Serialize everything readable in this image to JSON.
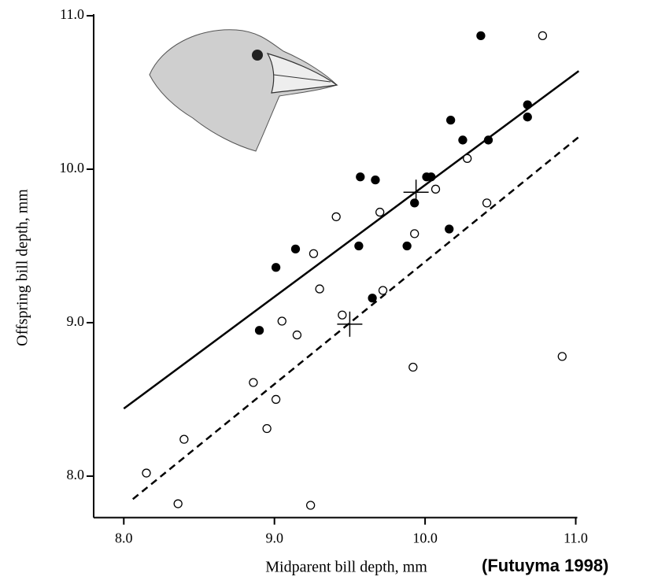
{
  "chart_data": {
    "type": "scatter",
    "x_label": "Midparent bill depth, mm",
    "y_label": "Offspring bill depth, mm",
    "annotation": "(Futuyma 1998)",
    "xlim": [
      7.8,
      11.0
    ],
    "ylim": [
      7.73,
      11.0
    ],
    "xticks": [
      {
        "value": 8,
        "label": "8.0"
      },
      {
        "value": 9,
        "label": "9.0"
      },
      {
        "value": 10,
        "label": "10.0"
      },
      {
        "value": 11,
        "label": "11.0"
      }
    ],
    "yticks": [
      {
        "value": 8,
        "label": "8.0"
      },
      {
        "value": 9,
        "label": "9.0"
      },
      {
        "value": 10,
        "label": "10.0"
      },
      {
        "value": 11,
        "label": "11.0"
      }
    ],
    "color": "#000000",
    "series": [
      {
        "marker": "filled",
        "x": [
          8.9,
          9.01,
          9.14,
          9.56,
          9.57,
          9.67,
          9.65,
          9.88,
          9.93,
          10.01,
          10.04,
          10.16,
          10.17,
          10.25,
          10.37,
          10.42,
          10.68,
          10.68
        ],
        "values": [
          8.95,
          9.36,
          9.48,
          9.5,
          9.95,
          9.93,
          9.16,
          9.5,
          9.78,
          9.95,
          9.95,
          9.61,
          10.32,
          10.19,
          10.87,
          10.19,
          10.42,
          10.34
        ]
      },
      {
        "marker": "open",
        "x": [
          8.15,
          8.4,
          8.36,
          8.86,
          9.01,
          8.95,
          9.05,
          9.15,
          9.24,
          9.26,
          9.3,
          9.41,
          9.45,
          9.7,
          9.72,
          9.92,
          9.93,
          10.07,
          10.28,
          10.41,
          10.78,
          10.91
        ],
        "values": [
          8.02,
          8.24,
          7.82,
          8.61,
          8.5,
          8.31,
          9.01,
          8.92,
          7.81,
          9.45,
          9.22,
          9.69,
          9.05,
          9.72,
          9.21,
          8.71,
          9.58,
          9.87,
          10.07,
          9.78,
          10.87,
          8.78
        ]
      }
    ],
    "lines": [
      {
        "style": "solid",
        "x": [
          8.0,
          11.02
        ],
        "values": [
          8.44,
          10.64
        ]
      },
      {
        "style": "dashed",
        "x": [
          8.06,
          11.02
        ],
        "values": [
          7.85,
          10.21
        ]
      }
    ],
    "means": {
      "x": [
        9.94,
        9.5
      ],
      "values": [
        9.85,
        8.99
      ]
    }
  }
}
